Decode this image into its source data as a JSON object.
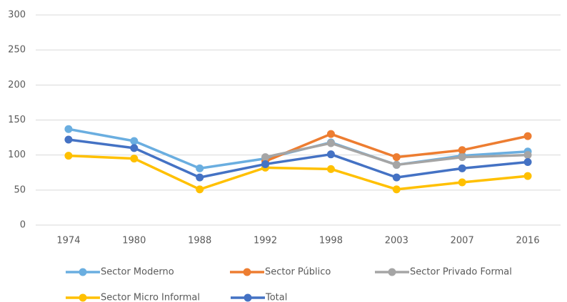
{
  "chart_data": {
    "type": "line",
    "categories": [
      "1974",
      "1980",
      "1988",
      "1992",
      "1998",
      "2003",
      "2007",
      "2016"
    ],
    "series": [
      {
        "name": "Sector Moderno",
        "color": "#6aaee0",
        "values": [
          137,
          120,
          81,
          95,
          118,
          86,
          99,
          105
        ]
      },
      {
        "name": "Sector Público",
        "color": "#ed7d31",
        "values": [
          null,
          null,
          null,
          91,
          130,
          97,
          107,
          127
        ]
      },
      {
        "name": "Sector Privado Formal",
        "color": "#a5a5a5",
        "values": [
          null,
          null,
          null,
          97,
          117,
          86,
          97,
          100
        ]
      },
      {
        "name": "Sector Micro Informal",
        "color": "#ffc000",
        "values": [
          99,
          95,
          51,
          82,
          80,
          51,
          61,
          70
        ]
      },
      {
        "name": "Total",
        "color": "#4472c4",
        "values": [
          122,
          110,
          68,
          87,
          101,
          68,
          81,
          90
        ]
      }
    ],
    "ylim": [
      0,
      300
    ],
    "yticks": [
      0,
      50,
      100,
      150,
      200,
      250,
      300
    ],
    "grid": true,
    "legend": "bottom"
  }
}
